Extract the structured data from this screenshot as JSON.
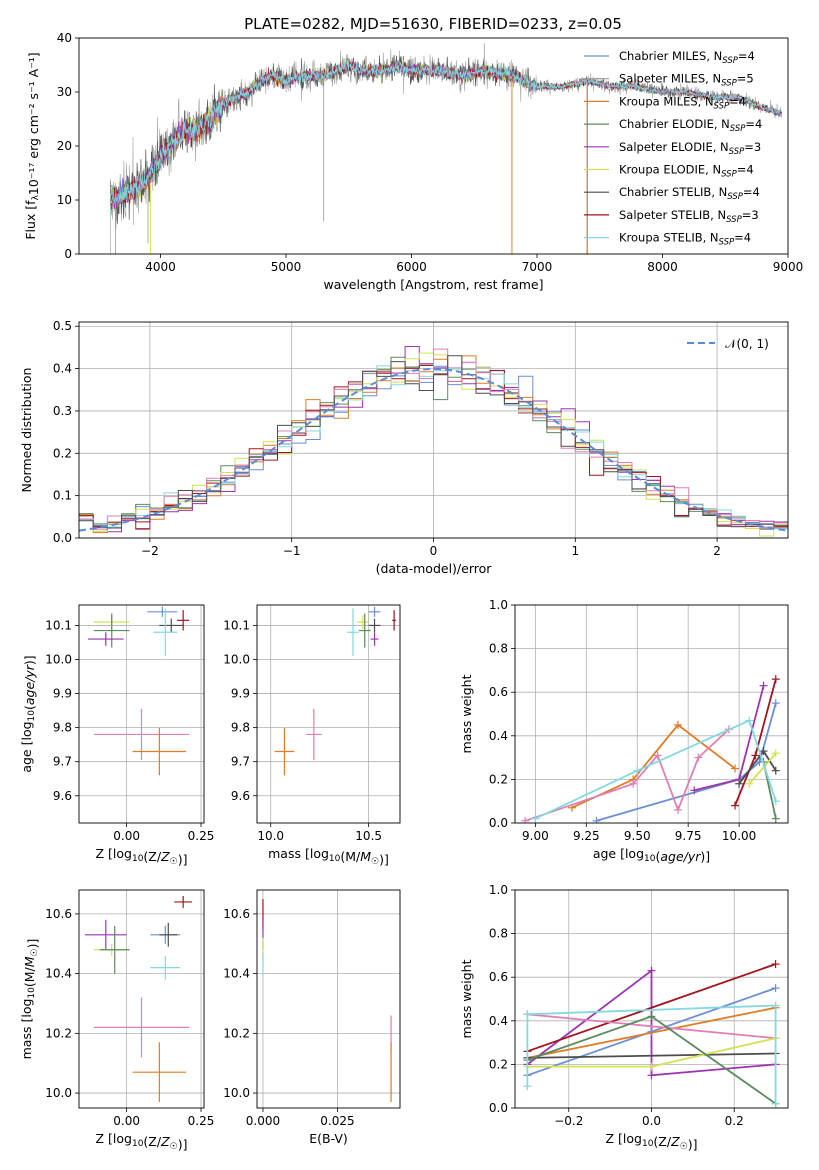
{
  "title": "PLATE=0282, MJD=51630, FIBERID=0233, z=0.05",
  "colors": {
    "Chabrier MILES": "#6a8fd6",
    "Salpeter MILES": "#9a9a9a",
    "Kroupa MILES": "#e07b26",
    "Chabrier ELODIE": "#5b8a5e",
    "Salpeter ELODIE": "#9b35b0",
    "Kroupa ELODIE": "#d2e34f",
    "Chabrier STELIB": "#4d4d4d",
    "Salpeter STELIB": "#a3131f",
    "Kroupa STELIB": "#85d8df",
    "Pink": "#e07fb3",
    "Normal": "#5b8bd6"
  },
  "chart_data": [
    {
      "type": "line",
      "name": "spectrum",
      "xlabel": "wavelength [Angstrom, rest frame]",
      "ylabel": "Flux [fλ10⁻¹⁷ erg cm⁻² s⁻¹ A⁻¹]",
      "xlim": [
        3350,
        9000
      ],
      "ylim": [
        0,
        40
      ],
      "xticks": [
        4000,
        5000,
        6000,
        7000,
        8000,
        9000
      ],
      "yticks": [
        0,
        10,
        20,
        30,
        40
      ],
      "grid": false,
      "legend_position": "top-right",
      "legend": [
        {
          "label": "Chabrier MILES, N",
          "sub": "SSP",
          "suffix": "=4",
          "color_key": "Chabrier MILES"
        },
        {
          "label": "Salpeter MILES, N",
          "sub": "SSP",
          "suffix": "=5",
          "color_key": "Salpeter MILES"
        },
        {
          "label": "Kroupa MILES, N",
          "sub": "SSP",
          "suffix": "=4",
          "color_key": "Kroupa MILES"
        },
        {
          "label": "Chabrier ELODIE, N",
          "sub": "SSP",
          "suffix": "=4",
          "color_key": "Chabrier ELODIE"
        },
        {
          "label": "Salpeter ELODIE, N",
          "sub": "SSP",
          "suffix": "=3",
          "color_key": "Salpeter ELODIE"
        },
        {
          "label": "Kroupa ELODIE, N",
          "sub": "SSP",
          "suffix": "=4",
          "color_key": "Kroupa ELODIE"
        },
        {
          "label": "Chabrier STELIB, N",
          "sub": "SSP",
          "suffix": "=4",
          "color_key": "Chabrier STELIB"
        },
        {
          "label": "Salpeter STELIB, N",
          "sub": "SSP",
          "suffix": "=3",
          "color_key": "Salpeter STELIB"
        },
        {
          "label": "Kroupa STELIB, N",
          "sub": "SSP",
          "suffix": "=4",
          "color_key": "Kroupa STELIB"
        }
      ],
      "continuum": [
        [
          3600,
          10
        ],
        [
          3700,
          11
        ],
        [
          3800,
          12
        ],
        [
          3900,
          14
        ],
        [
          4000,
          18
        ],
        [
          4100,
          21
        ],
        [
          4200,
          23
        ],
        [
          4300,
          23
        ],
        [
          4400,
          25
        ],
        [
          4500,
          28
        ],
        [
          4600,
          29
        ],
        [
          4700,
          30
        ],
        [
          4800,
          32
        ],
        [
          4900,
          33
        ],
        [
          5000,
          32
        ],
        [
          5100,
          33
        ],
        [
          5200,
          33
        ],
        [
          5300,
          33
        ],
        [
          5400,
          34
        ],
        [
          5500,
          35
        ],
        [
          5600,
          34
        ],
        [
          5700,
          34
        ],
        [
          5800,
          34
        ],
        [
          5900,
          35
        ],
        [
          6000,
          34
        ],
        [
          6200,
          34
        ],
        [
          6400,
          33
        ],
        [
          6600,
          34
        ],
        [
          6800,
          33
        ],
        [
          7000,
          31
        ],
        [
          7200,
          31
        ],
        [
          7400,
          32
        ],
        [
          7600,
          31
        ],
        [
          7800,
          31
        ],
        [
          8000,
          30
        ],
        [
          8200,
          30
        ],
        [
          8400,
          29
        ],
        [
          8600,
          29
        ],
        [
          8800,
          27
        ],
        [
          8950,
          26
        ]
      ]
    },
    {
      "type": "line",
      "name": "residual-histogram",
      "xlabel": "(data-model)/error",
      "ylabel": "Normed distribution",
      "xlim": [
        -2.5,
        2.5
      ],
      "ylim": [
        0,
        0.51
      ],
      "xticks": [
        -2,
        -1,
        0,
        1,
        2
      ],
      "yticks": [
        0.0,
        0.1,
        0.2,
        0.3,
        0.4,
        0.5
      ],
      "grid": true,
      "legend_position": "top-right",
      "legend_label": "𝒩(0, 1)",
      "bin_width": 0.1
    },
    {
      "type": "scatter",
      "name": "age-vs-metallicity",
      "xlabel": "Z [log10(Z/Z☉)]",
      "ylabel": "age  [log10(age/yr)]",
      "xlim": [
        -0.16,
        0.26
      ],
      "ylim": [
        9.52,
        10.16
      ],
      "xticks": [
        0.0,
        0.25
      ],
      "yticks": [
        9.6,
        9.7,
        9.8,
        9.9,
        10.0,
        10.1
      ],
      "grid": true,
      "points": [
        {
          "color_key": "Chabrier MILES",
          "x": 0.12,
          "y": 10.14,
          "xerr": 0.05,
          "yerr": 0.015
        },
        {
          "color_key": "Kroupa ELODIE",
          "x": -0.05,
          "y": 10.11,
          "xerr": 0.06,
          "yerr": 0.02
        },
        {
          "color_key": "Chabrier ELODIE",
          "x": -0.05,
          "y": 10.085,
          "xerr": 0.06,
          "yerr": 0.05
        },
        {
          "color_key": "Salpeter ELODIE",
          "x": -0.07,
          "y": 10.06,
          "xerr": 0.06,
          "yerr": 0.02
        },
        {
          "color_key": "Chabrier STELIB",
          "x": 0.15,
          "y": 10.1,
          "xerr": 0.04,
          "yerr": 0.02
        },
        {
          "color_key": "Salpeter STELIB",
          "x": 0.19,
          "y": 10.115,
          "xerr": 0.02,
          "yerr": 0.03
        },
        {
          "color_key": "Kroupa STELIB",
          "x": 0.13,
          "y": 10.08,
          "xerr": 0.04,
          "yerr": 0.07
        },
        {
          "color_key": "Pink",
          "x": 0.05,
          "y": 9.78,
          "xerr": 0.16,
          "yerr": 0.075
        },
        {
          "color_key": "Kroupa MILES",
          "x": 0.11,
          "y": 9.73,
          "xerr": 0.09,
          "yerr": 0.07
        }
      ]
    },
    {
      "type": "scatter",
      "name": "age-vs-mass",
      "xlabel": "mass [log10(M/M☉)]",
      "ylabel": "",
      "xlim": [
        9.93,
        10.66
      ],
      "ylim": [
        9.52,
        10.16
      ],
      "xticks": [
        10.0,
        10.5
      ],
      "yticks": [
        9.6,
        9.7,
        9.8,
        9.9,
        10.0,
        10.1
      ],
      "grid": true,
      "points": [
        {
          "color_key": "Chabrier MILES",
          "x": 10.53,
          "y": 10.14,
          "xerr": 0.03,
          "yerr": 0.015
        },
        {
          "color_key": "Kroupa ELODIE",
          "x": 10.47,
          "y": 10.11,
          "xerr": 0.03,
          "yerr": 0.02
        },
        {
          "color_key": "Chabrier ELODIE",
          "x": 10.48,
          "y": 10.085,
          "xerr": 0.03,
          "yerr": 0.05
        },
        {
          "color_key": "Salpeter ELODIE",
          "x": 10.53,
          "y": 10.06,
          "xerr": 0.02,
          "yerr": 0.02
        },
        {
          "color_key": "Chabrier STELIB",
          "x": 10.53,
          "y": 10.1,
          "xerr": 0.03,
          "yerr": 0.02
        },
        {
          "color_key": "Salpeter STELIB",
          "x": 10.63,
          "y": 10.115,
          "xerr": 0.01,
          "yerr": 0.03
        },
        {
          "color_key": "Kroupa STELIB",
          "x": 10.42,
          "y": 10.08,
          "xerr": 0.03,
          "yerr": 0.07
        },
        {
          "color_key": "Pink",
          "x": 10.22,
          "y": 9.78,
          "xerr": 0.04,
          "yerr": 0.075
        },
        {
          "color_key": "Kroupa MILES",
          "x": 10.07,
          "y": 9.73,
          "xerr": 0.05,
          "yerr": 0.07
        }
      ]
    },
    {
      "type": "line",
      "name": "mass-weight-vs-age",
      "xlabel": "age  [log10(age/yr)]",
      "ylabel": "mass weight",
      "xlim": [
        8.9,
        10.24
      ],
      "ylim": [
        0,
        1.0
      ],
      "xticks": [
        9.0,
        9.25,
        9.5,
        9.75,
        10.0
      ],
      "yticks": [
        0.0,
        0.2,
        0.4,
        0.6,
        0.8,
        1.0
      ],
      "grid": true,
      "series": [
        {
          "color_key": "Chabrier MILES",
          "x": [
            9.3,
            10.0,
            10.1,
            10.18
          ],
          "y": [
            0.01,
            0.2,
            0.28,
            0.55
          ]
        },
        {
          "color_key": "Kroupa MILES",
          "x": [
            9.18,
            9.48,
            9.7,
            9.98
          ],
          "y": [
            0.07,
            0.2,
            0.45,
            0.25
          ]
        },
        {
          "color_key": "Pink",
          "x": [
            8.95,
            9.48,
            9.6,
            9.7,
            9.8,
            9.95
          ],
          "y": [
            0.01,
            0.18,
            0.31,
            0.06,
            0.3,
            0.43
          ]
        },
        {
          "color_key": "Salpeter ELODIE",
          "x": [
            9.78,
            10.0,
            10.12
          ],
          "y": [
            0.15,
            0.2,
            0.63
          ]
        },
        {
          "color_key": "Salpeter STELIB",
          "x": [
            9.98,
            10.08,
            10.18
          ],
          "y": [
            0.08,
            0.31,
            0.66
          ]
        },
        {
          "color_key": "Chabrier STELIB",
          "x": [
            10.0,
            10.12,
            10.18
          ],
          "y": [
            0.18,
            0.33,
            0.24
          ]
        },
        {
          "color_key": "Kroupa ELODIE",
          "x": [
            10.05,
            10.18
          ],
          "y": [
            0.18,
            0.32
          ]
        },
        {
          "color_key": "Chabrier ELODIE",
          "x": [
            10.12,
            10.18
          ],
          "y": [
            0.28,
            0.02
          ]
        },
        {
          "color_key": "Kroupa STELIB",
          "x": [
            9.0,
            9.5,
            10.05,
            10.18
          ],
          "y": [
            0.02,
            0.24,
            0.47,
            0.1
          ]
        }
      ]
    },
    {
      "type": "scatter",
      "name": "mass-vs-metallicity",
      "xlabel": "Z [log10(Z/Z☉)]",
      "ylabel": "mass [log10(M/M☉)]",
      "xlim": [
        -0.16,
        0.26
      ],
      "ylim": [
        9.95,
        10.68
      ],
      "xticks": [
        0.0,
        0.25
      ],
      "yticks": [
        10.0,
        10.2,
        10.4,
        10.6
      ],
      "grid": true,
      "points": [
        {
          "color_key": "Salpeter STELIB",
          "x": 0.19,
          "y": 10.64,
          "xerr": 0.03,
          "yerr": 0.02
        },
        {
          "color_key": "Salpeter ELODIE",
          "x": -0.07,
          "y": 10.53,
          "xerr": 0.07,
          "yerr": 0.05
        },
        {
          "color_key": "Chabrier MILES",
          "x": 0.13,
          "y": 10.53,
          "xerr": 0.05,
          "yerr": 0.03
        },
        {
          "color_key": "Chabrier STELIB",
          "x": 0.14,
          "y": 10.53,
          "xerr": 0.03,
          "yerr": 0.04
        },
        {
          "color_key": "Kroupa ELODIE",
          "x": -0.05,
          "y": 10.48,
          "xerr": 0.06,
          "yerr": 0.02
        },
        {
          "color_key": "Chabrier ELODIE",
          "x": -0.04,
          "y": 10.48,
          "xerr": 0.05,
          "yerr": 0.08
        },
        {
          "color_key": "Kroupa STELIB",
          "x": 0.13,
          "y": 10.42,
          "xerr": 0.05,
          "yerr": 0.04
        },
        {
          "color_key": "Pink",
          "x": 0.05,
          "y": 10.22,
          "xerr": 0.16,
          "yerr": 0.1
        },
        {
          "color_key": "Kroupa MILES",
          "x": 0.11,
          "y": 10.07,
          "xerr": 0.09,
          "yerr": 0.1
        }
      ]
    },
    {
      "type": "scatter",
      "name": "mass-vs-ebv",
      "xlabel": "E(B-V)",
      "ylabel": "",
      "xlim": [
        -0.002,
        0.046
      ],
      "ylim": [
        9.95,
        10.68
      ],
      "xticks": [
        0.0,
        0.025
      ],
      "xtick_labels": [
        "0.000",
        "0.025"
      ],
      "yticks": [
        10.0,
        10.2,
        10.4,
        10.6
      ],
      "grid": true,
      "points": [
        {
          "color_key": "Salpeter STELIB",
          "x": 0.0,
          "y": 10.6,
          "xerr": 0.0,
          "yerr": 0.05
        },
        {
          "color_key": "Salpeter ELODIE",
          "x": 0.0,
          "y": 10.53,
          "xerr": 0.0,
          "yerr": 0.05
        },
        {
          "color_key": "Kroupa ELODIE",
          "x": 0.0,
          "y": 10.48,
          "xerr": 0.0,
          "yerr": 0.04
        },
        {
          "color_key": "Kroupa STELIB",
          "x": 0.0,
          "y": 10.43,
          "xerr": 0.0,
          "yerr": 0.04
        },
        {
          "color_key": "Pink",
          "x": 0.043,
          "y": 10.2,
          "xerr": 0.0,
          "yerr": 0.06
        },
        {
          "color_key": "Kroupa MILES",
          "x": 0.043,
          "y": 10.07,
          "xerr": 0.0,
          "yerr": 0.1
        }
      ]
    },
    {
      "type": "line",
      "name": "mass-weight-vs-metallicity",
      "xlabel": "Z [log10(Z/Z☉)]",
      "ylabel": "mass weight",
      "xlim": [
        -0.33,
        0.33
      ],
      "ylim": [
        0,
        1.0
      ],
      "xticks": [
        -0.2,
        0.0,
        0.2
      ],
      "yticks": [
        0.0,
        0.2,
        0.4,
        0.6,
        0.8,
        1.0
      ],
      "grid": true,
      "series": [
        {
          "color_key": "Salpeter ELODIE",
          "x": [
            -0.3,
            0.0,
            0.0,
            0.3
          ],
          "y": [
            0.2,
            0.63,
            0.15,
            0.2
          ]
        },
        {
          "color_key": "Salpeter STELIB",
          "x": [
            -0.3,
            0.3
          ],
          "y": [
            0.26,
            0.66
          ]
        },
        {
          "color_key": "Chabrier MILES",
          "x": [
            -0.3,
            0.0,
            0.3
          ],
          "y": [
            0.15,
            0.35,
            0.55
          ]
        },
        {
          "color_key": "Kroupa MILES",
          "x": [
            -0.3,
            0.3
          ],
          "y": [
            0.23,
            0.46
          ]
        },
        {
          "color_key": "Pink",
          "x": [
            -0.3,
            0.3
          ],
          "y": [
            0.43,
            0.32
          ]
        },
        {
          "color_key": "Chabrier STELIB",
          "x": [
            -0.3,
            0.3
          ],
          "y": [
            0.23,
            0.25
          ]
        },
        {
          "color_key": "Kroupa ELODIE",
          "x": [
            -0.3,
            0.0,
            0.3
          ],
          "y": [
            0.19,
            0.19,
            0.32
          ]
        },
        {
          "color_key": "Chabrier ELODIE",
          "x": [
            -0.3,
            0.0,
            0.3
          ],
          "y": [
            0.22,
            0.42,
            0.02
          ]
        },
        {
          "color_key": "Kroupa STELIB",
          "x": [
            -0.3,
            -0.3,
            0.3,
            0.3
          ],
          "y": [
            0.1,
            0.43,
            0.47,
            0.02
          ]
        }
      ]
    }
  ]
}
